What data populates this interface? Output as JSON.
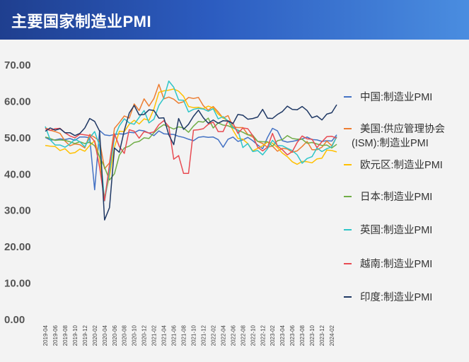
{
  "header": {
    "title": "主要国家制造业PMI"
  },
  "chart_data": {
    "type": "line",
    "ylim": [
      0,
      70
    ],
    "yticks": [
      "0.00",
      "10.00",
      "20.00",
      "30.00",
      "40.00",
      "50.00",
      "60.00",
      "70.00"
    ],
    "x": [
      "2019-04",
      "2019-05",
      "2019-06",
      "2019-07",
      "2019-08",
      "2019-09",
      "2019-10",
      "2019-11",
      "2019-12",
      "2020-01",
      "2020-02",
      "2020-03",
      "2020-04",
      "2020-05",
      "2020-06",
      "2020-07",
      "2020-08",
      "2020-09",
      "2020-10",
      "2020-11",
      "2020-12",
      "2021-01",
      "2021-02",
      "2021-03",
      "2021-04",
      "2021-05",
      "2021-06",
      "2021-07",
      "2021-08",
      "2021-09",
      "2021-10",
      "2021-11",
      "2021-12",
      "2022-01",
      "2022-02",
      "2022-03",
      "2022-04",
      "2022-05",
      "2022-06",
      "2022-07",
      "2022-08",
      "2022-09",
      "2022-10",
      "2022-11",
      "2022-12",
      "2023-01",
      "2023-02",
      "2023-03",
      "2023-04",
      "2023-05",
      "2023-06",
      "2023-07",
      "2023-08",
      "2023-09",
      "2023-10",
      "2023-11",
      "2023-12",
      "2024-01",
      "2024-02",
      "2024-03"
    ],
    "x_tick_labels": [
      "2019-04",
      "2019-06",
      "2019-08",
      "2019-10",
      "2019-12",
      "2020-02",
      "2020-04",
      "2020-06",
      "2020-08",
      "2020-10",
      "2020-12",
      "2021-02",
      "2021-04",
      "2021-06",
      "2021-08",
      "2021-10",
      "2021-12",
      "2022-02",
      "2022-04",
      "2022-06",
      "2022-08",
      "2022-10",
      "2022-12",
      "2023-02",
      "2023-04",
      "2023-06",
      "2023-08",
      "2023-10",
      "2023-12",
      "2024-02"
    ],
    "series": [
      {
        "name": "中国:制造业PMI",
        "color": "#4472c4",
        "values": [
          50.1,
          49.4,
          49.4,
          49.7,
          49.5,
          49.8,
          49.3,
          50.2,
          50.2,
          50.0,
          35.7,
          52.0,
          50.8,
          50.6,
          50.9,
          51.1,
          51.0,
          51.5,
          51.4,
          52.1,
          51.9,
          51.3,
          50.6,
          51.9,
          51.1,
          51.0,
          50.9,
          50.4,
          50.1,
          49.6,
          49.2,
          50.1,
          50.3,
          50.1,
          50.2,
          49.5,
          47.4,
          49.6,
          50.2,
          49.0,
          49.4,
          50.1,
          49.2,
          48.0,
          47.0,
          50.1,
          52.6,
          51.9,
          49.2,
          48.8,
          49.0,
          49.3,
          49.7,
          50.2,
          49.5,
          49.4,
          49.0,
          49.2,
          49.1,
          50.8
        ]
      },
      {
        "name": "美国:供应管理协会(ISM):制造业PMI",
        "color": "#ed7d31",
        "values": [
          52.8,
          52.1,
          51.7,
          51.2,
          49.1,
          47.8,
          48.3,
          48.1,
          47.2,
          50.9,
          50.1,
          49.1,
          41.5,
          43.1,
          52.6,
          54.2,
          56.0,
          55.4,
          59.3,
          57.5,
          60.7,
          58.7,
          60.8,
          64.7,
          60.7,
          61.2,
          60.6,
          59.5,
          59.9,
          61.1,
          60.8,
          61.1,
          58.8,
          57.6,
          58.6,
          57.1,
          55.4,
          56.1,
          53.0,
          52.8,
          52.8,
          50.9,
          50.2,
          49.0,
          48.4,
          47.4,
          47.7,
          46.3,
          47.1,
          46.9,
          46.0,
          46.4,
          47.6,
          49.0,
          46.7,
          46.7,
          47.4,
          49.1,
          47.8,
          50.3
        ]
      },
      {
        "name": "欧元区:制造业PMI",
        "color": "#ffc000",
        "values": [
          47.9,
          47.7,
          47.6,
          46.5,
          47.0,
          45.7,
          45.9,
          46.9,
          46.3,
          47.9,
          49.2,
          44.5,
          33.4,
          39.4,
          47.4,
          51.8,
          51.7,
          53.7,
          54.8,
          53.8,
          55.2,
          54.8,
          57.9,
          62.5,
          62.9,
          63.1,
          63.4,
          62.8,
          61.4,
          58.6,
          58.3,
          58.4,
          58.0,
          58.7,
          58.2,
          56.5,
          55.5,
          54.6,
          52.1,
          49.8,
          49.6,
          48.4,
          46.4,
          47.1,
          47.8,
          48.8,
          48.5,
          47.3,
          45.8,
          44.8,
          43.4,
          42.7,
          43.5,
          43.4,
          43.1,
          44.2,
          44.4,
          46.6,
          46.5,
          46.1
        ]
      },
      {
        "name": "日本:制造业PMI",
        "color": "#70ad47",
        "values": [
          50.2,
          49.8,
          49.3,
          49.4,
          49.3,
          48.9,
          48.4,
          48.9,
          48.4,
          48.8,
          47.8,
          44.8,
          41.9,
          38.4,
          40.1,
          45.2,
          47.2,
          47.7,
          48.7,
          49.0,
          50.0,
          49.8,
          51.4,
          52.7,
          53.6,
          53.0,
          52.4,
          53.0,
          52.7,
          51.5,
          53.2,
          54.5,
          54.3,
          55.4,
          52.7,
          54.1,
          53.5,
          53.3,
          52.7,
          52.1,
          51.5,
          50.8,
          50.7,
          49.0,
          48.9,
          48.9,
          47.7,
          49.2,
          49.5,
          50.6,
          49.8,
          49.6,
          49.6,
          48.5,
          48.7,
          48.3,
          47.9,
          48.0,
          47.2,
          48.2
        ]
      },
      {
        "name": "英国:制造业PMI",
        "color": "#2ec5c8",
        "values": [
          53.1,
          49.4,
          48.0,
          48.0,
          47.4,
          48.3,
          49.6,
          48.9,
          47.5,
          50.0,
          51.7,
          47.8,
          32.6,
          40.7,
          50.1,
          53.3,
          55.2,
          54.1,
          53.7,
          55.6,
          57.5,
          54.1,
          55.1,
          58.9,
          60.9,
          65.6,
          63.9,
          60.4,
          60.3,
          57.1,
          57.8,
          58.1,
          57.9,
          57.3,
          58.0,
          55.2,
          55.8,
          54.6,
          52.8,
          52.1,
          47.3,
          48.4,
          46.2,
          46.5,
          45.3,
          47.0,
          49.3,
          47.9,
          47.8,
          47.1,
          46.5,
          45.3,
          43.0,
          44.3,
          44.8,
          47.2,
          46.2,
          47.0,
          47.5,
          50.3
        ]
      },
      {
        "name": "越南:制造业PMI",
        "color": "#e84b52",
        "values": [
          52.5,
          52.0,
          52.5,
          52.6,
          51.4,
          50.5,
          50.0,
          51.0,
          50.8,
          50.6,
          49.0,
          41.9,
          32.7,
          42.7,
          51.1,
          47.6,
          45.7,
          52.2,
          51.8,
          49.9,
          51.7,
          51.3,
          51.6,
          53.6,
          54.7,
          53.1,
          44.1,
          45.1,
          40.2,
          40.2,
          52.1,
          52.2,
          52.5,
          53.7,
          54.3,
          51.7,
          51.7,
          54.7,
          54.0,
          51.2,
          52.7,
          52.5,
          50.6,
          47.4,
          46.4,
          47.4,
          51.2,
          47.7,
          46.7,
          45.3,
          46.2,
          48.7,
          50.5,
          49.7,
          49.6,
          47.3,
          48.9,
          50.3,
          50.4,
          49.9
        ]
      },
      {
        "name": "印度:制造业PMI",
        "color": "#1f3864",
        "values": [
          51.8,
          52.7,
          52.1,
          52.5,
          51.4,
          51.4,
          50.6,
          51.2,
          52.7,
          55.3,
          54.5,
          51.8,
          27.4,
          30.8,
          47.2,
          46.0,
          52.0,
          56.8,
          58.9,
          56.3,
          56.4,
          57.7,
          57.5,
          55.4,
          55.5,
          50.8,
          48.1,
          55.3,
          52.3,
          53.7,
          55.9,
          57.6,
          55.5,
          54.0,
          54.9,
          54.0,
          54.7,
          54.6,
          53.9,
          56.4,
          56.2,
          55.1,
          55.3,
          55.7,
          57.8,
          55.4,
          55.3,
          56.4,
          57.2,
          58.7,
          57.8,
          57.7,
          58.6,
          57.5,
          55.5,
          56.0,
          54.9,
          56.5,
          56.9,
          59.1
        ]
      }
    ]
  }
}
